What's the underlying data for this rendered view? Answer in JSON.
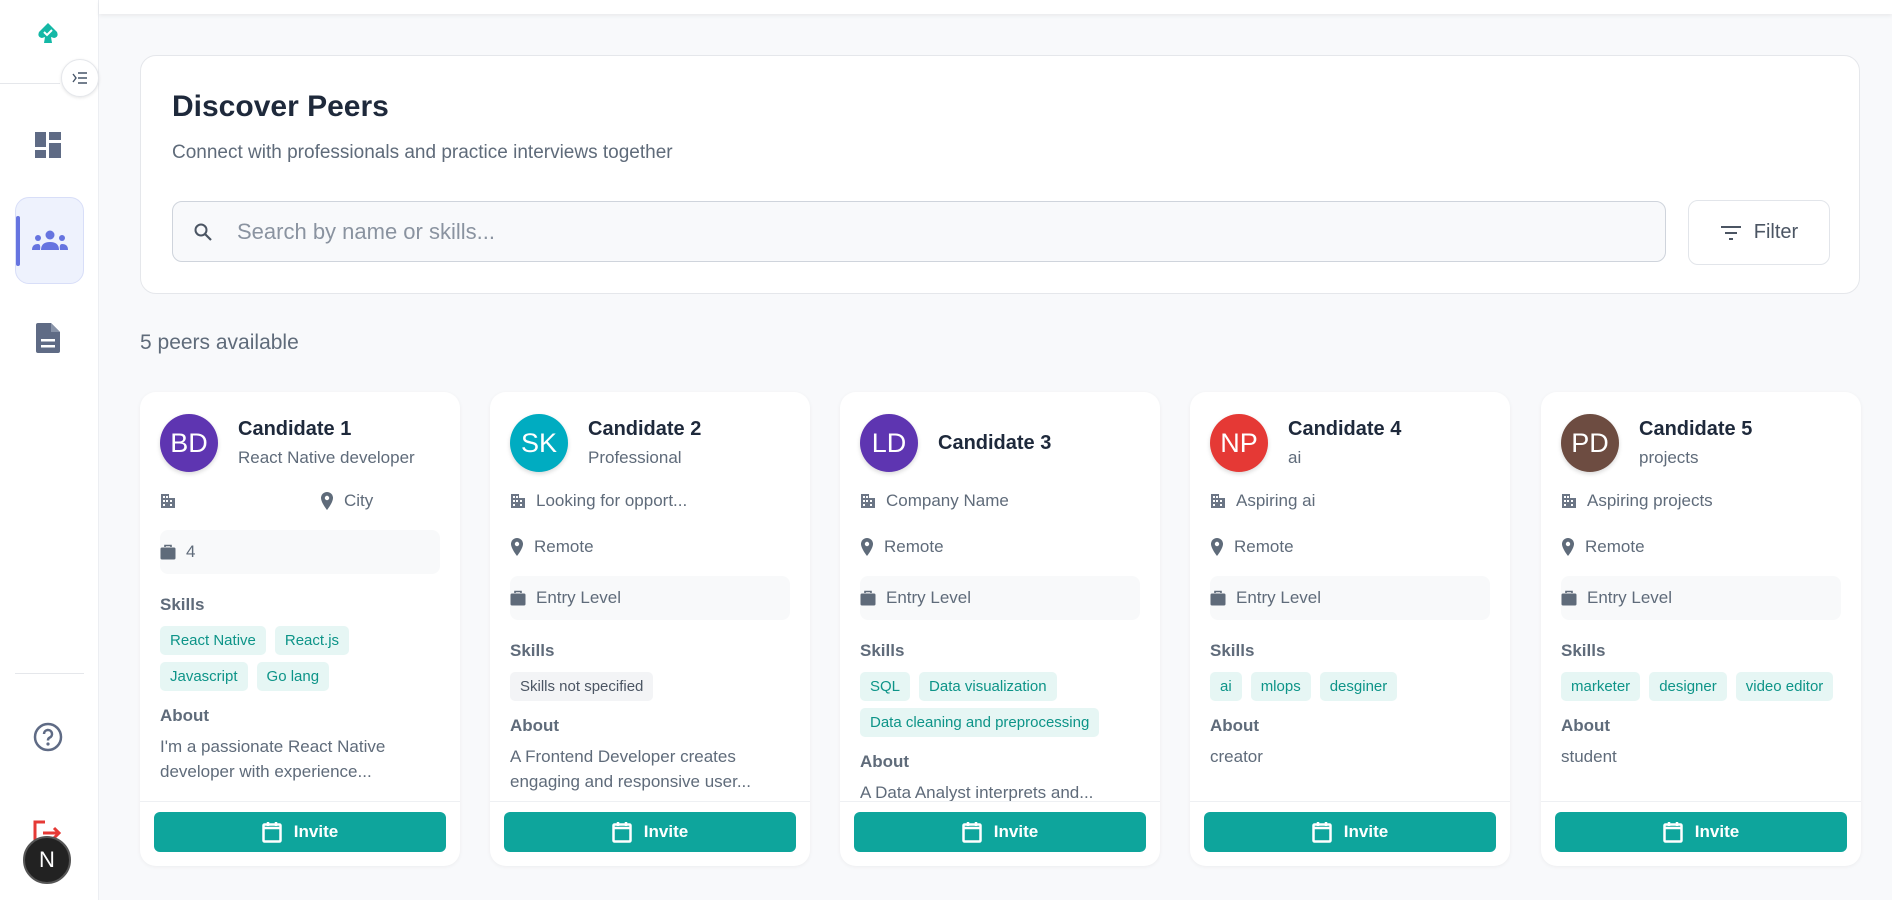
{
  "colors": {
    "accent": "#0ea59c",
    "active_nav": "#6674e0",
    "logout": "#e53935"
  },
  "sidebar": {
    "items": [
      {
        "icon": "dashboard-icon"
      },
      {
        "icon": "people-icon",
        "active": true
      },
      {
        "icon": "document-icon"
      },
      {
        "icon": "help-icon"
      },
      {
        "icon": "logout-icon"
      }
    ],
    "badge": "N"
  },
  "header": {
    "title": "Discover Peers",
    "subtitle": "Connect with professionals and practice interviews together",
    "search_placeholder": "Search by name or skills...",
    "filter_label": "Filter"
  },
  "count_label": "5 peers available",
  "labels": {
    "skills": "Skills",
    "about": "About",
    "invite": "Invite"
  },
  "peers": [
    {
      "initials": "BD",
      "color": "#5e35b1",
      "name": "Candidate 1",
      "role": "React Native developer",
      "company": "",
      "location": "City",
      "experience": "4",
      "skills": [
        "React Native",
        "React.js",
        "Javascript",
        "Go lang"
      ],
      "about": "I'm a passionate React Native developer with experience..."
    },
    {
      "initials": "SK",
      "color": "#00acc1",
      "name": "Candidate 2",
      "role": "Professional",
      "company": "Looking for opport...",
      "location": "Remote",
      "experience": "Entry Level",
      "skills": [],
      "skills_empty": "Skills not specified",
      "about": "A Frontend Developer creates engaging and responsive user..."
    },
    {
      "initials": "LD",
      "color": "#5e35b1",
      "name": "Candidate 3",
      "role": "",
      "company": "Company Name",
      "location": "Remote",
      "experience": "Entry Level",
      "skills": [
        "SQL",
        "Data visualization",
        "Data cleaning and preprocessing"
      ],
      "about": "A Data Analyst interprets and..."
    },
    {
      "initials": "NP",
      "color": "#e53935",
      "name": "Candidate 4",
      "role": "ai",
      "company": "Aspiring ai",
      "location": "Remote",
      "experience": "Entry Level",
      "skills": [
        "ai",
        "mlops",
        "desginer"
      ],
      "about": "creator"
    },
    {
      "initials": "PD",
      "color": "#6d4c41",
      "name": "Candidate 5",
      "role": "projects",
      "company": "Aspiring projects",
      "location": "Remote",
      "experience": "Entry Level",
      "skills": [
        "marketer",
        "designer",
        "video editor"
      ],
      "about": "student"
    }
  ]
}
